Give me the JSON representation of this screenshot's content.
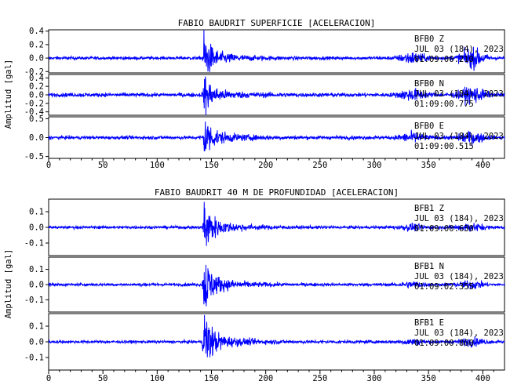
{
  "chart_data": [
    {
      "type": "line",
      "title": "FABIO BAUDRIT SUPERFICIE [ACELERACION]",
      "ylabel": "Amplitud [gal]",
      "xlabel": "",
      "xlim": [
        0,
        420
      ],
      "xticks": [
        "0",
        "50",
        "100",
        "150",
        "200",
        "250",
        "300",
        "350",
        "400"
      ],
      "xtick_values": [
        0,
        50,
        100,
        150,
        200,
        250,
        300,
        350,
        400
      ],
      "grid": false,
      "series_color": "#0000ff",
      "event_onset_s": 143,
      "panels": [
        {
          "station": "BFB0",
          "component": "Z",
          "date": "JUL 03 (184), 2023",
          "time": "01:09:00.210",
          "ylim": [
            -0.22,
            0.42
          ],
          "yticks": [
            "0.4",
            "0.2",
            "0.0",
            "-0.2"
          ],
          "ytick_values": [
            0.4,
            0.2,
            0.0,
            -0.2
          ],
          "noise_amp": 0.02,
          "peak_amp": 0.3,
          "late_burst": [
            [
              335,
              0.07
            ],
            [
              390,
              0.12
            ]
          ]
        },
        {
          "station": "BFB0",
          "component": "N",
          "date": "JUL 03 (184), 2023",
          "time": "01:09:00.775",
          "ylim": [
            -0.48,
            0.48
          ],
          "yticks": [
            "0.4",
            "0.2",
            "0.0",
            "-0.2",
            "-0.4"
          ],
          "ytick_values": [
            0.4,
            0.2,
            0.0,
            -0.2,
            -0.4
          ],
          "noise_amp": 0.04,
          "peak_amp": 0.38,
          "late_burst": [
            [
              335,
              0.1
            ],
            [
              390,
              0.15
            ]
          ]
        },
        {
          "station": "BFB0",
          "component": "E",
          "date": "JUL 03 (184), 2023",
          "time": "01:09:00.515",
          "ylim": [
            -0.55,
            0.55
          ],
          "yticks": [
            "0.5",
            "0.0",
            "-0.5"
          ],
          "ytick_values": [
            0.5,
            0.0,
            -0.5
          ],
          "noise_amp": 0.04,
          "peak_amp": 0.5,
          "late_burst": [
            [
              335,
              0.1
            ],
            [
              390,
              0.12
            ]
          ]
        }
      ]
    },
    {
      "type": "line",
      "title": "FABIO BAUDRIT 40 M DE PROFUNDIDAD [ACELERACION]",
      "ylabel": "Amplitud [gal]",
      "xlabel": "",
      "xlim": [
        0,
        420
      ],
      "xticks": [
        "0",
        "50",
        "100",
        "150",
        "200",
        "250",
        "300",
        "350",
        "400"
      ],
      "xtick_values": [
        0,
        50,
        100,
        150,
        200,
        250,
        300,
        350,
        400
      ],
      "grid": false,
      "series_color": "#0000ff",
      "event_onset_s": 143,
      "panels": [
        {
          "station": "BFB1",
          "component": "Z",
          "date": "JUL 03 (184), 2023",
          "time": "01:09:00.630",
          "ylim": [
            -0.18,
            0.18
          ],
          "yticks": [
            "0.1",
            "0.0",
            "-0.1"
          ],
          "ytick_values": [
            0.1,
            0.0,
            -0.1
          ],
          "noise_amp": 0.008,
          "peak_amp": 0.15,
          "late_burst": [
            [
              335,
              0.015
            ],
            [
              390,
              0.02
            ]
          ]
        },
        {
          "station": "BFB1",
          "component": "N",
          "date": "JUL 03 (184), 2023",
          "time": "01:09:02.355",
          "ylim": [
            -0.18,
            0.18
          ],
          "yticks": [
            "0.1",
            "0.0",
            "-0.1"
          ],
          "ytick_values": [
            0.1,
            0.0,
            -0.1
          ],
          "noise_amp": 0.008,
          "peak_amp": 0.16,
          "late_burst": [
            [
              335,
              0.015
            ],
            [
              390,
              0.02
            ]
          ]
        },
        {
          "station": "BFB1",
          "component": "E",
          "date": "JUL 03 (184), 2023",
          "time": "01:09:00.860",
          "ylim": [
            -0.18,
            0.18
          ],
          "yticks": [
            "0.1",
            "0.0",
            "-0.1"
          ],
          "ytick_values": [
            0.1,
            0.0,
            -0.1
          ],
          "noise_amp": 0.008,
          "peak_amp": 0.17,
          "late_burst": [
            [
              335,
              0.015
            ],
            [
              390,
              0.02
            ]
          ]
        }
      ]
    }
  ]
}
